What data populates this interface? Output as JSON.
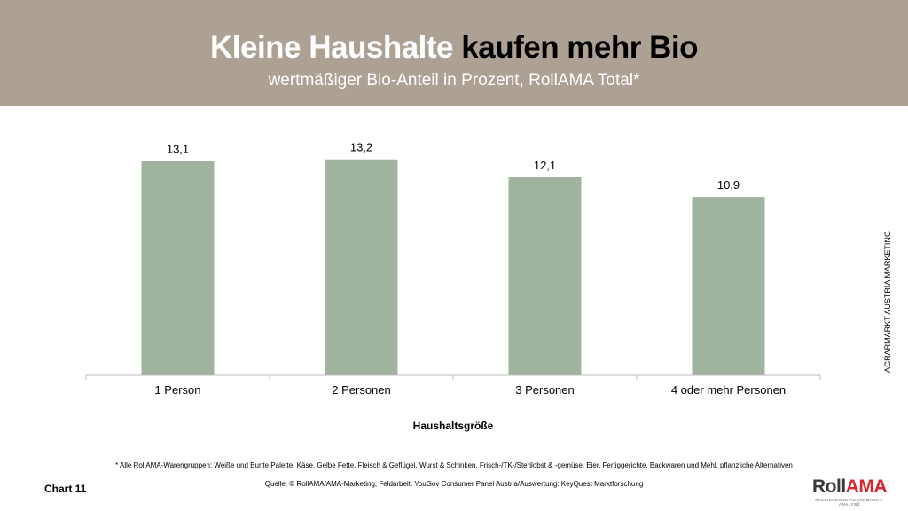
{
  "header": {
    "title_part1": "Kleine Haushalte",
    "title_part2": "kaufen mehr Bio",
    "subtitle": "wertmäßiger Bio-Anteil in Prozent, RollAMA Total*"
  },
  "chart_data": {
    "type": "bar",
    "categories": [
      "1 Person",
      "2 Personen",
      "3 Personen",
      "4 oder mehr Personen"
    ],
    "values": [
      13.1,
      13.2,
      12.1,
      10.9
    ],
    "data_labels": [
      "13,1",
      "13,2",
      "12,1",
      "10,9"
    ],
    "xlabel": "Haushaltsgröße",
    "ylabel": "",
    "ylim": [
      0,
      14
    ],
    "grid": false,
    "bar_color": "#9fb39f"
  },
  "footnote": "* Alle RollAMA-Warengruppen: Weiße und Bunte Palette, Käse, Gelbe Fette, Fleisch & Geflügel, Wurst & Schinken, Frisch-/TK-/Sterilobst & -gemüse, Eier, Fertiggerichte, Backwaren und Mehl, pflanzliche Alternativen",
  "source": "Quelle: © RollAMA/AMA-Marketing, Feldarbeit: YouGov Consumer Panel Austria/Auswertung: KeyQuest Marktforschung",
  "chart_number": "Chart 11",
  "side_label": "AGRARMARKT AUSTRIA MARKETING",
  "logo": {
    "text_dark": "Roll",
    "text_red": "AMA",
    "tagline": "ROLLIERENDE AGRARMARKT-ANALYSE"
  }
}
